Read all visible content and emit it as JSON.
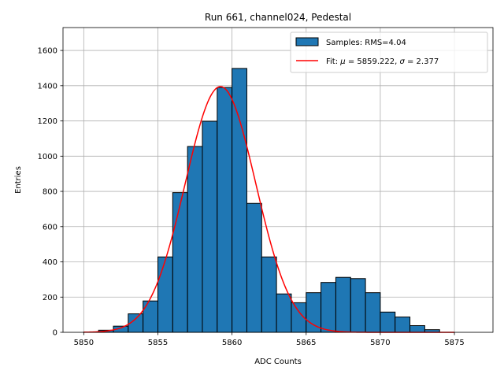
{
  "chart_data": {
    "type": "bar",
    "title": "Run 661, channel024, Pedestal",
    "xlabel": "ADC Counts",
    "ylabel": "Entries",
    "xlim": [
      5848.6,
      5877.6
    ],
    "ylim": [
      0,
      1730
    ],
    "xticks": [
      5850,
      5855,
      5860,
      5865,
      5870,
      5875
    ],
    "yticks": [
      0,
      200,
      400,
      600,
      800,
      1000,
      1200,
      1400,
      1600
    ],
    "grid": true,
    "legend_position": "top-right",
    "histogram": {
      "name": "Samples: RMS=4.04",
      "bin_edges": [
        5850,
        5851,
        5852,
        5853,
        5854,
        5855,
        5856,
        5857,
        5858,
        5859,
        5860,
        5861,
        5862,
        5863,
        5864,
        5865,
        5866,
        5867,
        5868,
        5869,
        5870,
        5871,
        5872,
        5873,
        5874
      ],
      "counts": [
        2,
        12,
        35,
        105,
        178,
        428,
        793,
        1055,
        1198,
        1390,
        1498,
        732,
        428,
        218,
        168,
        225,
        283,
        312,
        305,
        225,
        115,
        87,
        38,
        15
      ],
      "color": "#1f77b4",
      "edge_color": "#000000"
    },
    "fit": {
      "name": "Fit: μ = 5859.222, σ = 2.377",
      "legend_parts": [
        {
          "text": "Fit: "
        },
        {
          "text": "μ",
          "italic": true
        },
        {
          "text": " = 5859.222, "
        },
        {
          "text": "σ",
          "italic": true
        },
        {
          "text": " = 2.377"
        }
      ],
      "mu": 5859.222,
      "sigma": 2.377,
      "amplitude": 1395,
      "x_range": [
        5850,
        5875
      ],
      "color": "#ff0000"
    }
  }
}
